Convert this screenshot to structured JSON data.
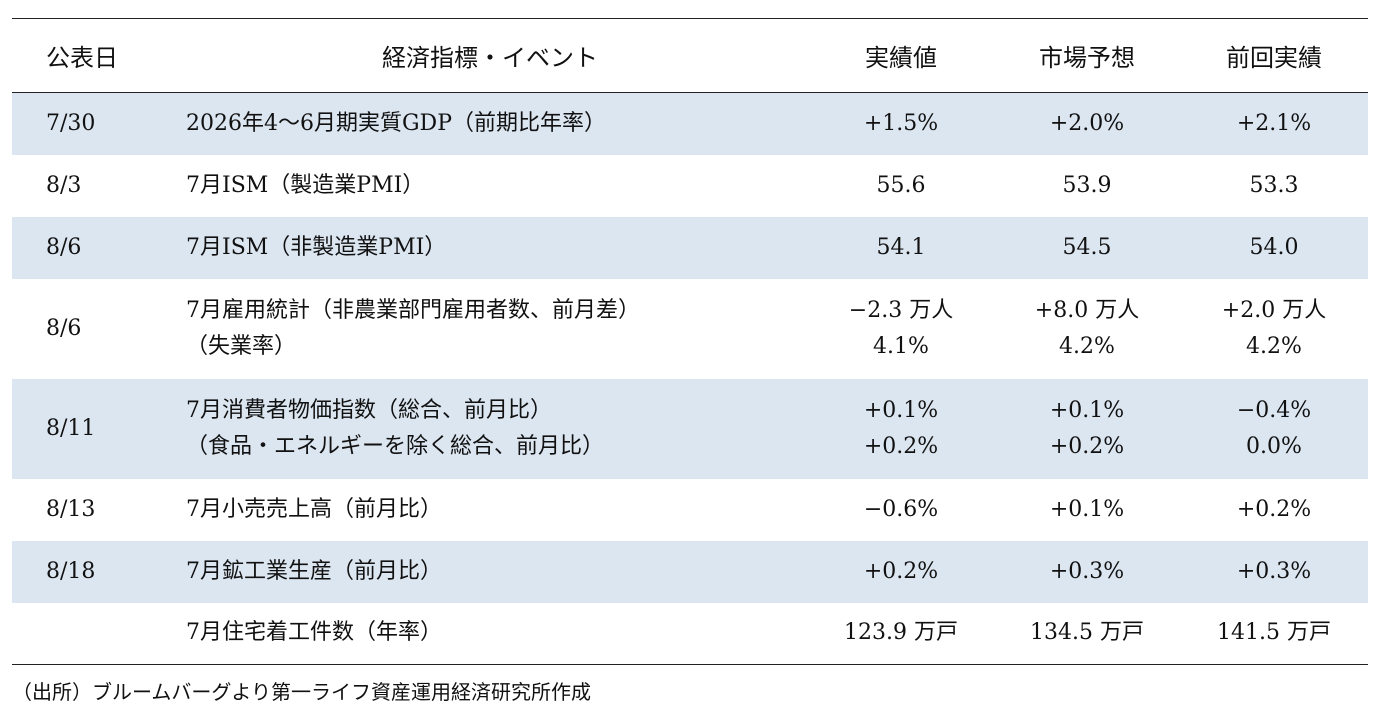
{
  "header": {
    "date": "公表日",
    "indicator": "経済指標・イベント",
    "actual": "実績値",
    "expected": "市場予想",
    "previous": "前回実績"
  },
  "rows": [
    {
      "date": "7/30",
      "lines": [
        "2026年4～6月期実質GDP（前期比年率）"
      ],
      "actual": [
        "+1.5%"
      ],
      "expected": [
        "+2.0%"
      ],
      "previous": [
        "+2.1%"
      ]
    },
    {
      "date": "8/3",
      "lines": [
        "7月ISM（製造業PMI）"
      ],
      "actual": [
        "55.6"
      ],
      "expected": [
        "53.9"
      ],
      "previous": [
        "53.3"
      ]
    },
    {
      "date": "8/6",
      "lines": [
        "7月ISM（非製造業PMI）"
      ],
      "actual": [
        "54.1"
      ],
      "expected": [
        "54.5"
      ],
      "previous": [
        "54.0"
      ]
    },
    {
      "date": "8/6",
      "lines": [
        "7月雇用統計（非農業部門雇用者数、前月差）",
        "（失業率）"
      ],
      "actual": [
        "−2.3 万人",
        "4.1%"
      ],
      "expected": [
        "+8.0 万人",
        "4.2%"
      ],
      "previous": [
        "+2.0 万人",
        "4.2%"
      ]
    },
    {
      "date": "8/11",
      "lines": [
        "7月消費者物価指数（総合、前月比）",
        "（食品・エネルギーを除く総合、前月比）"
      ],
      "actual": [
        "+0.1%",
        "+0.2%"
      ],
      "expected": [
        "+0.1%",
        "+0.2%"
      ],
      "previous": [
        "−0.4%",
        "0.0%"
      ]
    },
    {
      "date": "8/13",
      "lines": [
        "7月小売売上高（前月比）"
      ],
      "actual": [
        "−0.6%"
      ],
      "expected": [
        "+0.1%"
      ],
      "previous": [
        "+0.2%"
      ]
    },
    {
      "date": "8/18",
      "lines": [
        "7月鉱工業生産（前月比）"
      ],
      "actual": [
        "+0.2%"
      ],
      "expected": [
        "+0.3%"
      ],
      "previous": [
        "+0.3%"
      ]
    },
    {
      "date": "",
      "lines": [
        "7月住宅着工件数（年率）"
      ],
      "actual": [
        "123.9 万戸"
      ],
      "expected": [
        "134.5 万戸"
      ],
      "previous": [
        "141.5 万戸"
      ]
    }
  ],
  "source": "（出所）ブルームバーグより第一ライフ資産運用経済研究所作成",
  "colors": {
    "shaded_row": "#dce6f1",
    "rule": "#222222"
  }
}
